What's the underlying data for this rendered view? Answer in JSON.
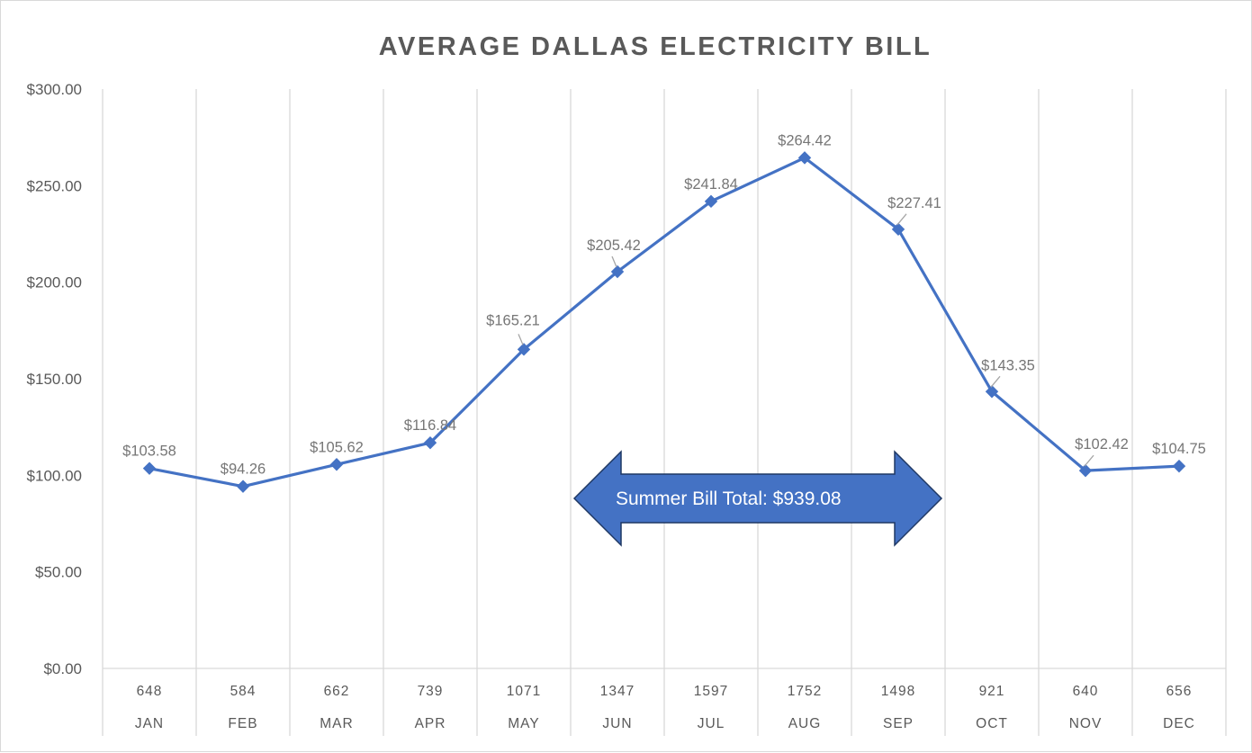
{
  "chart_data": {
    "type": "line",
    "title": "AVERAGE DALLAS ELECTRICITY BILL",
    "categories": [
      "JAN",
      "FEB",
      "MAR",
      "APR",
      "MAY",
      "JUN",
      "JUL",
      "AUG",
      "SEP",
      "OCT",
      "NOV",
      "DEC"
    ],
    "category_sublabels": [
      "648",
      "584",
      "662",
      "739",
      "1071",
      "1347",
      "1597",
      "1752",
      "1498",
      "921",
      "640",
      "656"
    ],
    "values": [
      103.58,
      94.26,
      105.62,
      116.84,
      165.21,
      205.42,
      241.84,
      264.42,
      227.41,
      143.35,
      102.42,
      104.75
    ],
    "data_labels": [
      "$103.58",
      "$94.26",
      "$105.62",
      "$116.84",
      "$165.21",
      "$205.42",
      "$241.84",
      "$264.42",
      "$227.41",
      "$143.35",
      "$102.42",
      "$104.75"
    ],
    "ylim": [
      0,
      300
    ],
    "y_ticks": [
      0,
      50,
      100,
      150,
      200,
      250,
      300
    ],
    "y_tick_labels": [
      "$0.00",
      "$50.00",
      "$100.00",
      "$150.00",
      "$200.00",
      "$250.00",
      "$300.00"
    ],
    "grid": "vertical category dividers",
    "marker": "diamond",
    "line_color": "#4472c4",
    "annotation": {
      "text": "Summer Bill Total: $939.08",
      "shape": "double-arrow",
      "fill_color": "#4472c4",
      "border_color": "#1f3864",
      "span_from": "JUN",
      "span_to": "SEP"
    }
  }
}
